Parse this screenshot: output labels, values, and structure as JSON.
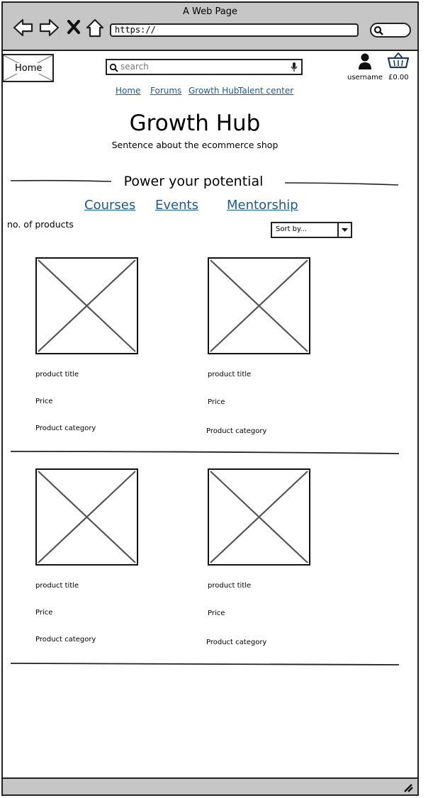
{
  "window": {
    "title": "A Web Page",
    "url": "https://"
  },
  "site": {
    "home_label": "Home",
    "search_placeholder": "search",
    "username": "username",
    "cart_total": "£0.00",
    "nav": [
      "Home",
      "Forums",
      "Growth Hub",
      "Talent center"
    ],
    "title": "Growth Hub",
    "tagline": "Sentence about the ecommerce shop",
    "section_heading": "Power your potential",
    "categories": [
      "Courses",
      "Events",
      "Mentorship"
    ],
    "product_count_label": "no. of products",
    "sort_label": "Sort by..."
  },
  "products": [
    {
      "title": "product title",
      "price": "Price",
      "category": "Product category"
    },
    {
      "title": "product title",
      "price": "Price",
      "category": "Product category"
    },
    {
      "title": "product title",
      "price": "Price",
      "category": "Product category"
    },
    {
      "title": "product title",
      "price": "Price",
      "category": "Product category"
    }
  ],
  "colors": {
    "link": "#1a5a96",
    "chrome": "#c6c6c6",
    "cart_icon": "#1f3c5a"
  }
}
